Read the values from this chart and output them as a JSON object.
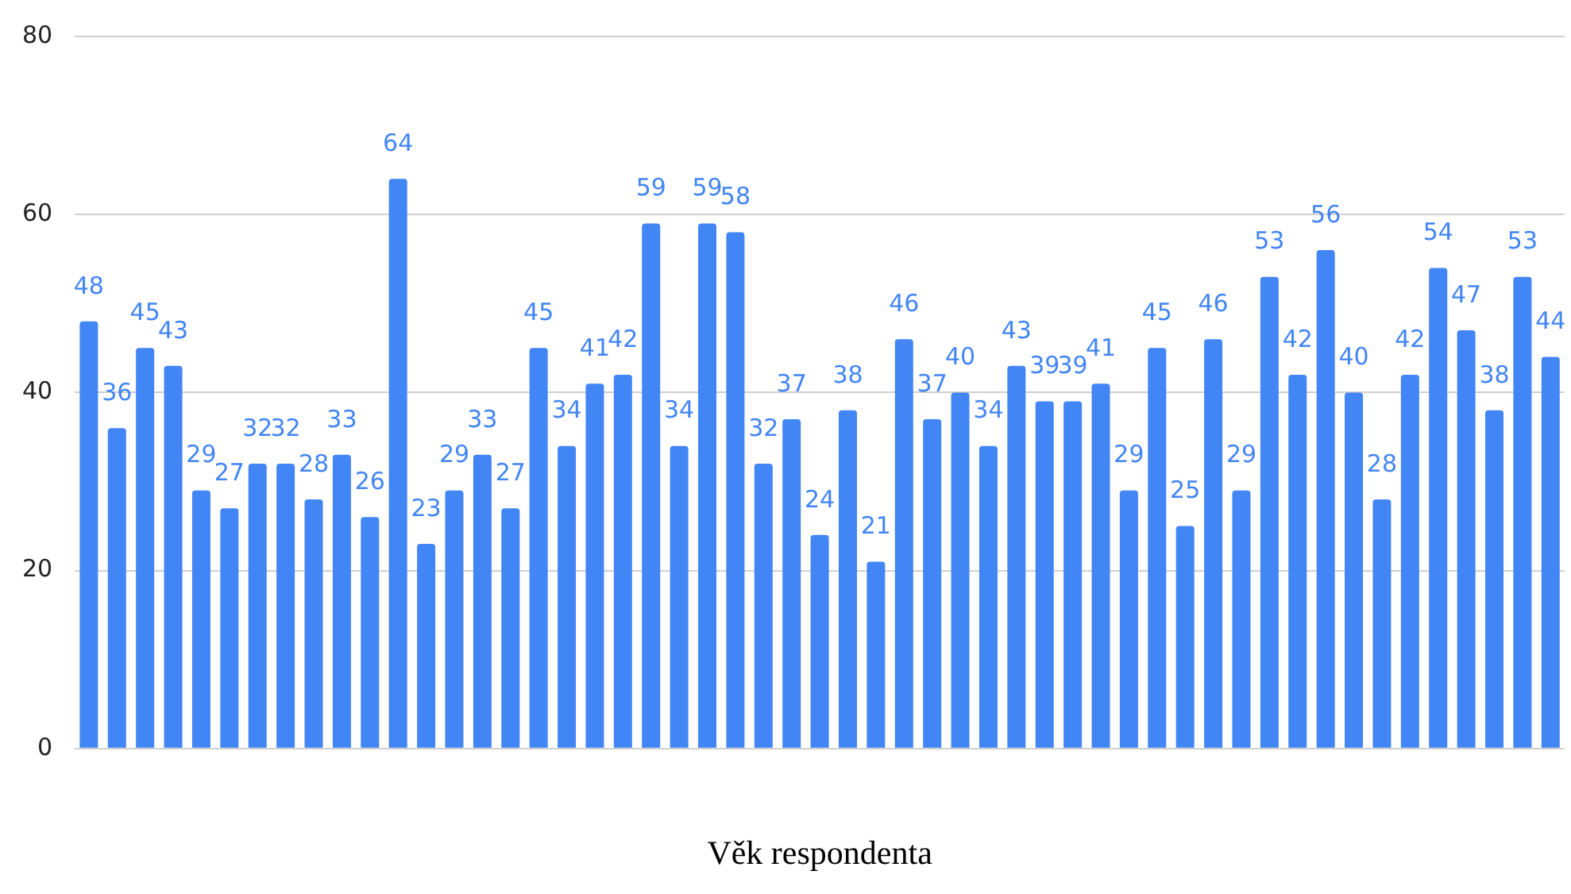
{
  "chart_data": {
    "type": "bar",
    "xlabel": "Věk respondenta",
    "categories": [
      null,
      null,
      null,
      null,
      null,
      null,
      null,
      null,
      null,
      null,
      null,
      null,
      null,
      null,
      null,
      null,
      null,
      null,
      null,
      null,
      null,
      null,
      null,
      null,
      null,
      null,
      null,
      null,
      null,
      null,
      null,
      null,
      null,
      null,
      null,
      null,
      null,
      null,
      null,
      null,
      null,
      null,
      null,
      null,
      null,
      null,
      null,
      null,
      null,
      null,
      null,
      null,
      null
    ],
    "values": [
      48,
      36,
      45,
      43,
      29,
      27,
      32,
      32,
      28,
      33,
      26,
      64,
      23,
      29,
      33,
      27,
      45,
      34,
      41,
      42,
      59,
      34,
      59,
      58,
      32,
      37,
      24,
      38,
      21,
      46,
      37,
      40,
      34,
      43,
      39,
      39,
      41,
      29,
      45,
      25,
      46,
      29,
      53,
      42,
      56,
      40,
      28,
      42,
      54,
      47,
      38,
      53,
      44
    ],
    "color": "#4285f4",
    "ylim": [
      0,
      80
    ],
    "yticks": [
      0,
      20,
      40,
      60,
      80
    ],
    "grid": "y",
    "data_labels": true
  }
}
